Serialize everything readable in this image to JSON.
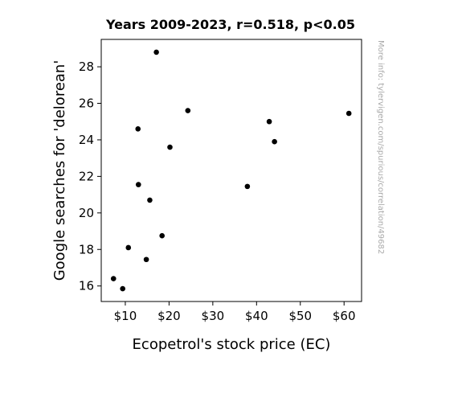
{
  "chart_data": {
    "type": "scatter",
    "title": "Years 2009-2023, r=0.518, p<0.05",
    "xlabel": "Ecopetrol's stock price (EC)",
    "ylabel": "Google searches for 'delorean'",
    "xlim": [
      4.5,
      64
    ],
    "ylim": [
      15.15,
      29.5
    ],
    "xticks": [
      {
        "value": 10,
        "label": "$10"
      },
      {
        "value": 20,
        "label": "$20"
      },
      {
        "value": 30,
        "label": "$30"
      },
      {
        "value": 40,
        "label": "$40"
      },
      {
        "value": 50,
        "label": "$50"
      },
      {
        "value": 60,
        "label": "$60"
      }
    ],
    "yticks": [
      {
        "value": 16,
        "label": "16"
      },
      {
        "value": 18,
        "label": "18"
      },
      {
        "value": 20,
        "label": "20"
      },
      {
        "value": 22,
        "label": "22"
      },
      {
        "value": 24,
        "label": "24"
      },
      {
        "value": 26,
        "label": "26"
      },
      {
        "value": 28,
        "label": "28"
      }
    ],
    "grid": false,
    "marker_color": "#000000",
    "points": [
      {
        "x": 7.3,
        "y": 16.4
      },
      {
        "x": 9.4,
        "y": 15.85
      },
      {
        "x": 10.7,
        "y": 18.1
      },
      {
        "x": 12.9,
        "y": 24.6
      },
      {
        "x": 13.0,
        "y": 21.55
      },
      {
        "x": 14.8,
        "y": 17.45
      },
      {
        "x": 15.6,
        "y": 20.7
      },
      {
        "x": 17.1,
        "y": 28.8
      },
      {
        "x": 18.4,
        "y": 18.75
      },
      {
        "x": 20.2,
        "y": 23.6
      },
      {
        "x": 24.3,
        "y": 25.6
      },
      {
        "x": 37.9,
        "y": 21.45
      },
      {
        "x": 42.9,
        "y": 25.0
      },
      {
        "x": 44.1,
        "y": 23.9
      },
      {
        "x": 61.1,
        "y": 25.45
      }
    ]
  },
  "side_note": "More info: tylervigen.com/spurious/correlation/49682"
}
